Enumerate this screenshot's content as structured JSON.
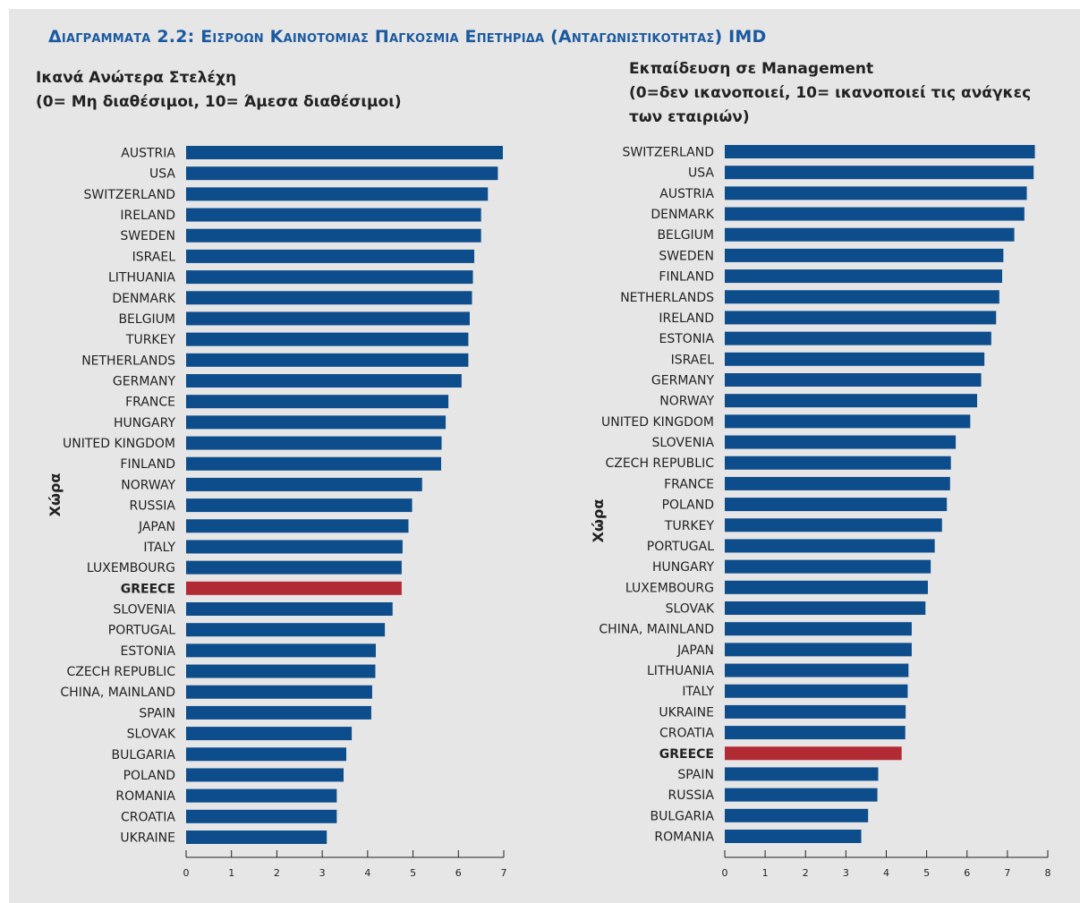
{
  "figure_title": "Διαγραμματα 2.2: Εισροων Καινοτομιας Παγκοσμια Επετηριδα (Ανταγωνιστικοτητας) IMD",
  "colors": {
    "bar": "#0d4d8c",
    "highlight": "#b22a34",
    "title": "#1b5aa0",
    "background": "#e6e6e6"
  },
  "chart_data": [
    {
      "type": "bar",
      "orientation": "horizontal",
      "title_lines": [
        "Ικανά Ανώτερα Στελέχη",
        "(0= Μη διαθέσιμοι, 10= Άμεσα διαθέσιμοι)"
      ],
      "ylabel": "Χώρα",
      "xlabel": "",
      "xlim": [
        0,
        7
      ],
      "xticks": [
        0,
        1,
        2,
        3,
        4,
        5,
        6,
        7
      ],
      "highlight": "GREECE",
      "grid": false,
      "categories": [
        "AUSTRIA",
        "USA",
        "SWITZERLAND",
        "IRELAND",
        "SWEDEN",
        "ISRAEL",
        "LITHUANIA",
        "DENMARK",
        "BELGIUM",
        "TURKEY",
        "NETHERLANDS",
        "GERMANY",
        "FRANCE",
        "HUNGARY",
        "UNITED KINGDOM",
        "FINLAND",
        "NORWAY",
        "RUSSIA",
        "JAPAN",
        "ITALY",
        "LUXEMBOURG",
        "GREECE",
        "SLOVENIA",
        "PORTUGAL",
        "ESTONIA",
        "CZECH REPUBLIC",
        "CHINA, MAINLAND",
        "SPAIN",
        "SLOVAK",
        "BULGARIA",
        "POLAND",
        "ROMANIA",
        "CROATIA",
        "UKRAINE"
      ],
      "values": [
        6.98,
        6.87,
        6.65,
        6.5,
        6.5,
        6.35,
        6.32,
        6.3,
        6.25,
        6.22,
        6.22,
        6.07,
        5.78,
        5.72,
        5.63,
        5.62,
        5.2,
        4.98,
        4.9,
        4.77,
        4.75,
        4.75,
        4.55,
        4.38,
        4.18,
        4.17,
        4.1,
        4.08,
        3.65,
        3.53,
        3.47,
        3.32,
        3.32,
        3.1
      ]
    },
    {
      "type": "bar",
      "orientation": "horizontal",
      "title_lines": [
        "Εκπαίδευση σε Management",
        "(0=δεν ικανοποιεί, 10= ικανοποιεί τις ανάγκες",
        "των εταιριών)"
      ],
      "ylabel": "Χώρα",
      "xlabel": "",
      "xlim": [
        0,
        8
      ],
      "xticks": [
        0,
        1,
        2,
        3,
        4,
        5,
        6,
        7,
        8
      ],
      "highlight": "GREECE",
      "grid": false,
      "categories": [
        "SWITZERLAND",
        "USA",
        "AUSTRIA",
        "DENMARK",
        "BELGIUM",
        "SWEDEN",
        "FINLAND",
        "NETHERLANDS",
        "IRELAND",
        "ESTONIA",
        "ISRAEL",
        "GERMANY",
        "NORWAY",
        "UNITED KINGDOM",
        "SLOVENIA",
        "CZECH REPUBLIC",
        "FRANCE",
        "POLAND",
        "TURKEY",
        "PORTUGAL",
        "HUNGARY",
        "LUXEMBOURG",
        "SLOVAK",
        "CHINA, MAINLAND",
        "JAPAN",
        "LITHUANIA",
        "ITALY",
        "UKRAINE",
        "CROATIA",
        "GREECE",
        "SPAIN",
        "RUSSIA",
        "BULGARIA",
        "ROMANIA"
      ],
      "values": [
        7.68,
        7.65,
        7.48,
        7.42,
        7.17,
        6.9,
        6.87,
        6.8,
        6.72,
        6.6,
        6.43,
        6.35,
        6.25,
        6.08,
        5.72,
        5.6,
        5.58,
        5.5,
        5.38,
        5.2,
        5.1,
        5.03,
        4.97,
        4.63,
        4.63,
        4.55,
        4.53,
        4.48,
        4.47,
        4.38,
        3.8,
        3.78,
        3.55,
        3.38
      ]
    }
  ]
}
